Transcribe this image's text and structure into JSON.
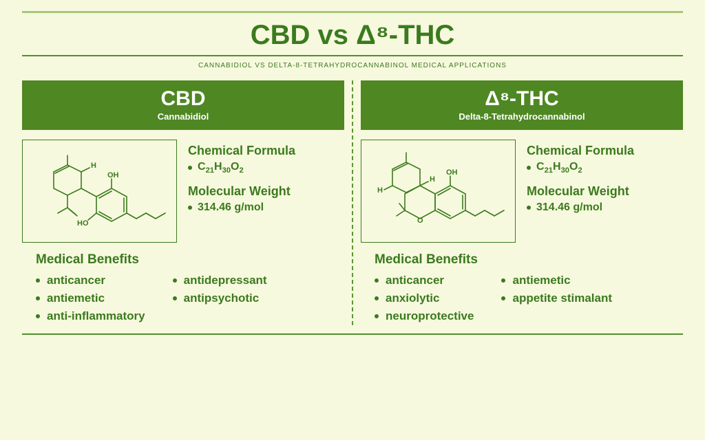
{
  "colors": {
    "bg": "#f7f9de",
    "ink": "#3b7a1f",
    "rule_light": "#a7c67a",
    "rule_green": "#4f8f2b",
    "panel_bg": "#4f8723",
    "mol_border": "#3b7a1f",
    "bullet": "#3b7a1f",
    "divider": "#5a9830"
  },
  "title": "CBD vs Δ⁸-THC",
  "subtitle": "CANNABIDIOL VS DELTA-8-TETRAHYDROCANNABINOL MEDICAL APPLICATIONS",
  "left": {
    "abbr": "CBD",
    "full": "Cannabidiol",
    "formula_label": "Chemical Formula",
    "formula_html": "C<sub>21</sub>H<sub>30</sub>O<sub>2</sub>",
    "mw_label": "Molecular Weight",
    "mw_value": "314.46 g/mol",
    "benefits_label": "Medical Benefits",
    "benefits_col1": [
      "anticancer",
      "antiemetic",
      "anti-inflammatory"
    ],
    "benefits_col2": [
      "antidepressant",
      "antipsychotic"
    ]
  },
  "right": {
    "abbr": "Δ⁸-THC",
    "full": "Delta-8-Tetrahydrocannabinol",
    "formula_label": "Chemical Formula",
    "formula_html": "C<sub>21</sub>H<sub>30</sub>O<sub>2</sub>",
    "mw_label": "Molecular Weight",
    "mw_value": "314.46 g/mol",
    "benefits_label": "Medical Benefits",
    "benefits_col1": [
      "anticancer",
      "anxiolytic",
      "neuroprotective"
    ],
    "benefits_col2": [
      "antiemetic",
      "appetite stimalant"
    ]
  },
  "molecule_style": {
    "stroke_width": 1.6,
    "label_font_size": 11
  }
}
